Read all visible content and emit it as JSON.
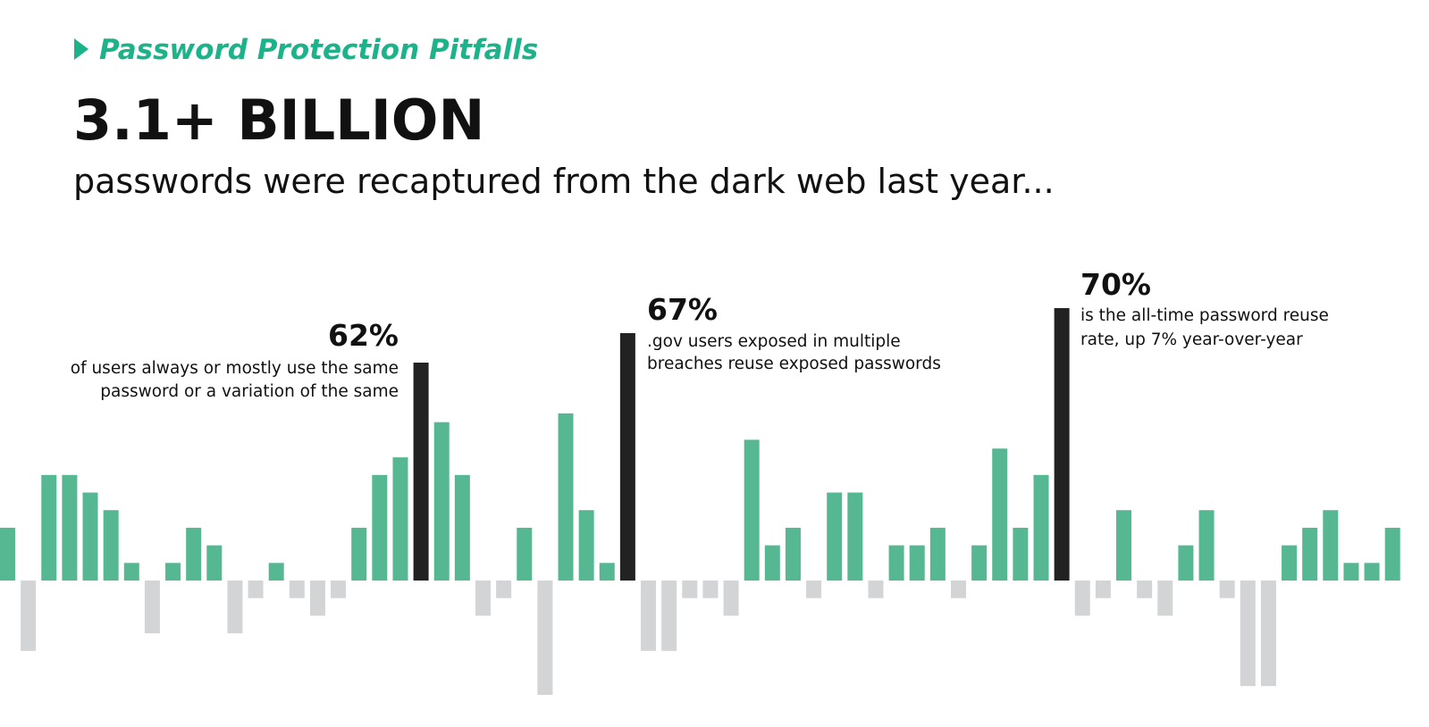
{
  "header": {
    "kicker": "Password Protection Pitfalls",
    "title": "3.1+ BILLION",
    "subtitle": "passwords were recaptured from the dark web last year..."
  },
  "stats": [
    {
      "value": "62%",
      "lines": [
        "of users always or mostly use the same",
        "password or a variation of the same"
      ]
    },
    {
      "value": "67%",
      "lines": [
        ".gov users exposed in multiple",
        "breaches reuse exposed passwords"
      ]
    },
    {
      "value": "70%",
      "lines": [
        "is the all-time password reuse",
        "rate, up 7% year-over-year"
      ]
    }
  ]
}
